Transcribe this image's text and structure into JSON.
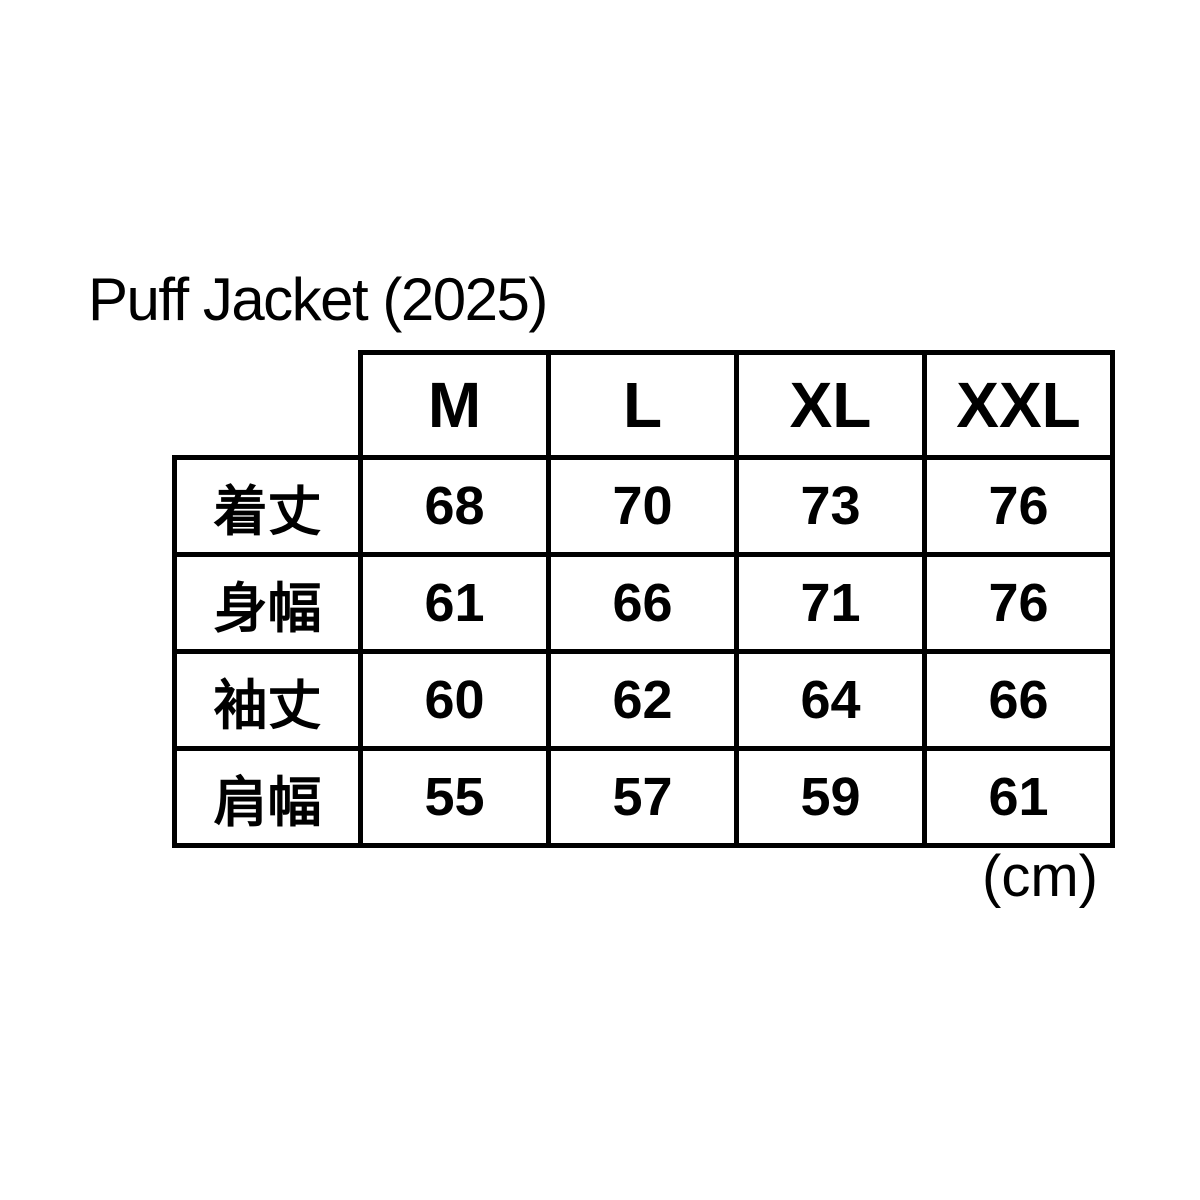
{
  "title": "Puff Jacket (2025)",
  "unit_note": "(cm)",
  "colors": {
    "background": "#ffffff",
    "border": "#000000",
    "text": "#000000"
  },
  "chart_data": {
    "type": "table",
    "title": "Puff Jacket (2025)",
    "unit": "cm",
    "columns": [
      "M",
      "L",
      "XL",
      "XXL"
    ],
    "rows": [
      {
        "label": "着丈",
        "values": [
          68,
          70,
          73,
          76
        ]
      },
      {
        "label": "身幅",
        "values": [
          61,
          66,
          71,
          76
        ]
      },
      {
        "label": "袖丈",
        "values": [
          60,
          62,
          64,
          66
        ]
      },
      {
        "label": "肩幅",
        "values": [
          55,
          57,
          59,
          61
        ]
      }
    ]
  }
}
